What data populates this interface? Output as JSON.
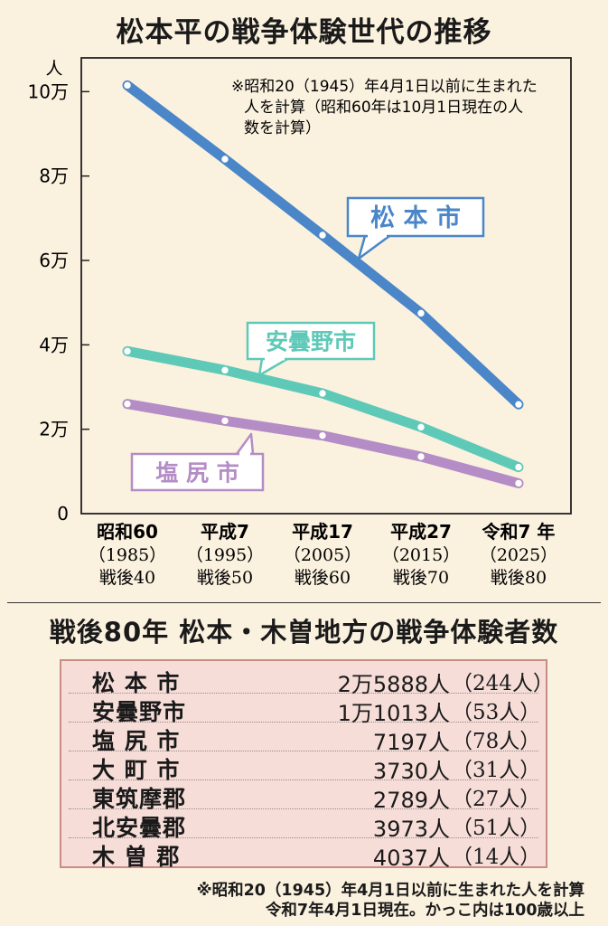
{
  "title": "松本平の戦争体験世代の推移",
  "chart_data": {
    "type": "line",
    "y_unit": "人",
    "ylim": [
      0,
      108000
    ],
    "y_ticks": [
      {
        "value": 0,
        "label": "0"
      },
      {
        "value": 20000,
        "label": "2万"
      },
      {
        "value": 40000,
        "label": "4万"
      },
      {
        "value": 60000,
        "label": "6万"
      },
      {
        "value": 80000,
        "label": "8万"
      },
      {
        "value": 100000,
        "label": "10万"
      }
    ],
    "categories": [
      {
        "era": "昭和60",
        "year": "（1985）",
        "postwar": "戦後40"
      },
      {
        "era": "平成7",
        "year": "（1995）",
        "postwar": "戦後50"
      },
      {
        "era": "平成17",
        "year": "（2005）",
        "postwar": "戦後60"
      },
      {
        "era": "平成27",
        "year": "（2015）",
        "postwar": "戦後70"
      },
      {
        "era": "令和7 年",
        "year": "（2025）",
        "postwar": "戦後80"
      }
    ],
    "note": [
      "※昭和20（1945）年4月1日以前に生まれた",
      "人を計算（昭和60年は10月1日現在の人",
      "数を計算）"
    ],
    "series": [
      {
        "name": "松 本 市",
        "color": "#4a86c8",
        "values": [
          101500,
          84000,
          66000,
          47500,
          25888
        ]
      },
      {
        "name": "安曇野市",
        "color": "#5fc9b8",
        "values": [
          38500,
          34000,
          28500,
          20500,
          11013
        ]
      },
      {
        "name": "塩 尻 市",
        "color": "#b48cc6",
        "values": [
          26000,
          22000,
          18500,
          13500,
          7197
        ]
      }
    ],
    "grid": false
  },
  "table": {
    "title": "戦後80年  松本・木曽地方の戦争体験者数",
    "rows": [
      {
        "name": "松 本 市",
        "count": "2万5888人",
        "centenarians": "（244人）"
      },
      {
        "name": "安曇野市",
        "count": "1万1013人",
        "centenarians": "（53人）"
      },
      {
        "name": "塩 尻 市",
        "count": "7197人",
        "centenarians": "（78人）"
      },
      {
        "name": "大 町 市",
        "count": "3730人",
        "centenarians": "（31人）"
      },
      {
        "name": "東筑摩郡",
        "count": "2789人",
        "centenarians": "（27人）"
      },
      {
        "name": "北安曇郡",
        "count": "3973人",
        "centenarians": "（51人）"
      },
      {
        "name": "木 曽 郡",
        "count": "4037人",
        "centenarians": "（14人）"
      }
    ],
    "footnote": [
      "※昭和20（1945）年4月1日以前に生まれた人を計算",
      "令和7年4月1日現在。かっこ内は100歳以上"
    ]
  }
}
